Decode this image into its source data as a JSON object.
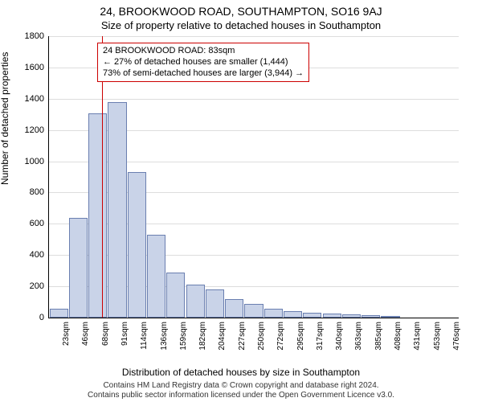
{
  "title": "24, BROOKWOOD ROAD, SOUTHAMPTON, SO16 9AJ",
  "subtitle": "Size of property relative to detached houses in Southampton",
  "ylabel": "Number of detached properties",
  "xlabel": "Distribution of detached houses by size in Southampton",
  "attribution_line1": "Contains HM Land Registry data © Crown copyright and database right 2024.",
  "attribution_line2": "Contains public sector information licensed under the Open Government Licence v3.0.",
  "annotation": {
    "line1": "24 BROOKWOOD ROAD: 83sqm",
    "line2": "← 27% of detached houses are smaller (1,444)",
    "line3": "73% of semi-detached houses are larger (3,944) →"
  },
  "chart": {
    "type": "histogram",
    "categories": [
      "23sqm",
      "46sqm",
      "68sqm",
      "91sqm",
      "114sqm",
      "136sqm",
      "159sqm",
      "182sqm",
      "204sqm",
      "227sqm",
      "250sqm",
      "272sqm",
      "295sqm",
      "317sqm",
      "340sqm",
      "363sqm",
      "385sqm",
      "408sqm",
      "431sqm",
      "453sqm",
      "476sqm"
    ],
    "values": [
      55,
      640,
      1305,
      1380,
      930,
      530,
      290,
      210,
      180,
      120,
      90,
      55,
      40,
      32,
      28,
      22,
      14,
      10,
      0,
      0,
      0
    ],
    "ylim": [
      0,
      1800
    ],
    "ytick_step": 200,
    "bar_fill": "#c9d3e8",
    "bar_stroke": "#6a7fb0",
    "grid_color": "#dddddd",
    "background_color": "#ffffff",
    "marker_line_x_index": 2.7,
    "marker_line_color": "#cc0000",
    "title_fontsize": 14,
    "subtitle_fontsize": 13,
    "label_fontsize": 12,
    "tick_fontsize": 11
  }
}
